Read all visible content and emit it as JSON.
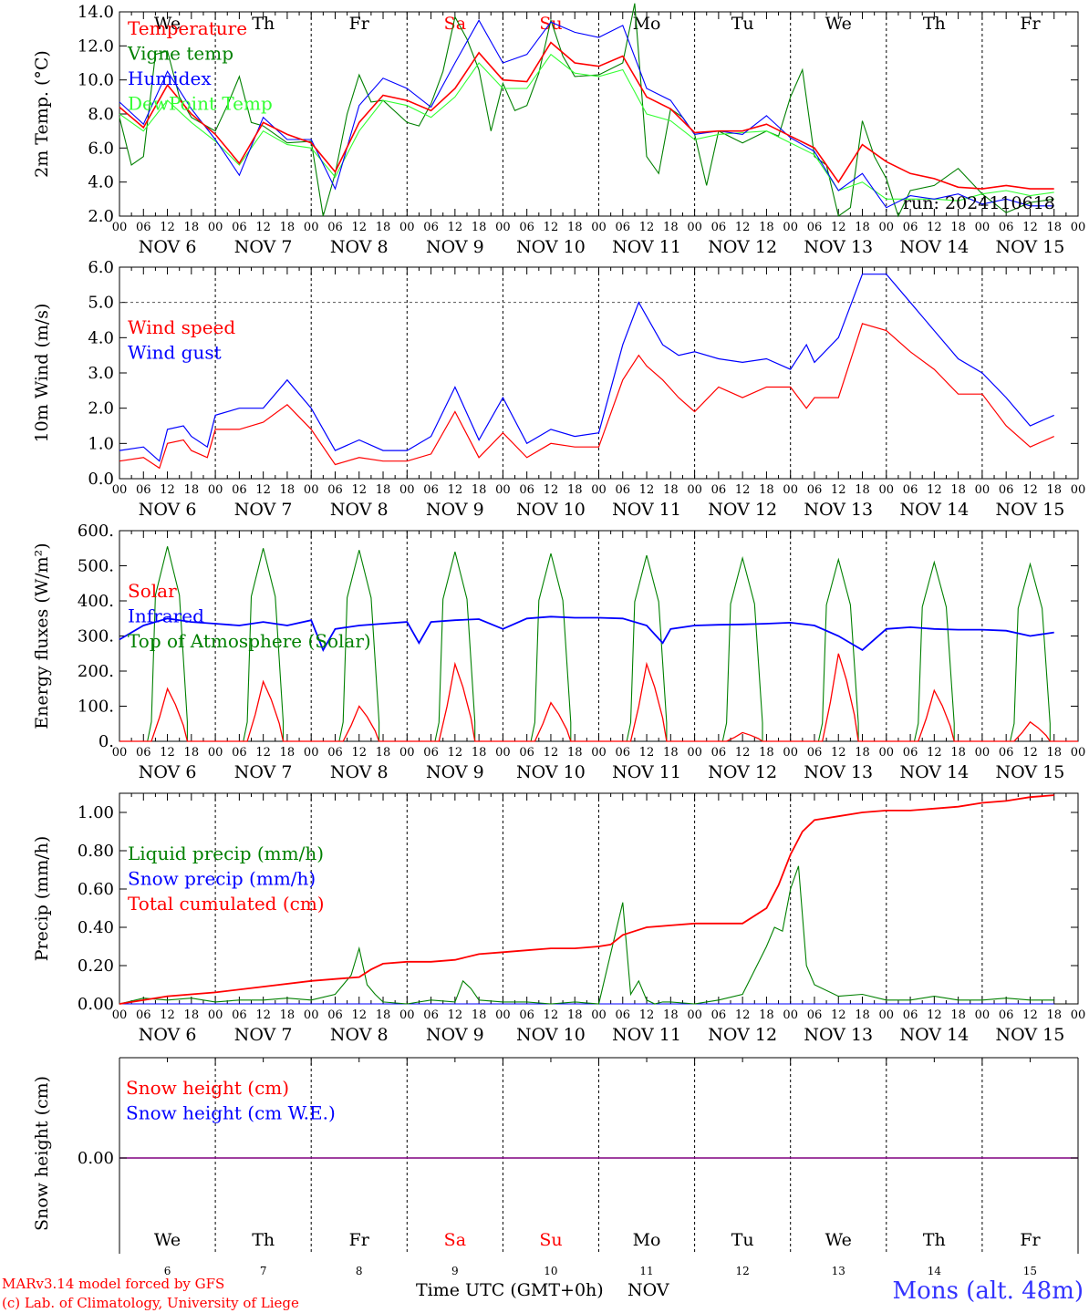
{
  "days": [
    "6",
    "7",
    "8",
    "9",
    "10",
    "11",
    "12",
    "13",
    "14",
    "15"
  ],
  "weekdays": [
    "We",
    "Th",
    "Fr",
    "Sa",
    "Su",
    "Mo",
    "Tu",
    "We",
    "Th",
    "Fr"
  ],
  "weekend_flags": [
    false,
    false,
    false,
    true,
    true,
    false,
    false,
    false,
    false,
    false
  ],
  "month": "NOV",
  "hour_ticks": [
    "00",
    "06",
    "12",
    "18"
  ],
  "last_tick": "00",
  "colors": {
    "red": "#ff0000",
    "green": "#008000",
    "blue": "#0000ff",
    "lightgreen": "#33ff33",
    "purple": "#800080",
    "grid": "#000000"
  },
  "footer": {
    "model": "MARv3.14 model forced by GFS",
    "copyright": "(c) Lab. of Climatology, University of Liege",
    "time_label": "Time UTC (GMT+0h)",
    "month": "NOV",
    "location": "Mons (alt. 48m)"
  },
  "chart_data": [
    {
      "type": "line",
      "ylabel": "2m Temp. (°C)",
      "ylim": [
        2.0,
        14.0
      ],
      "yticks": [
        "2.0",
        "4.0",
        "6.0",
        "8.0",
        "10.0",
        "12.0",
        "14.0"
      ],
      "run_label": "run: 2024110618",
      "x_unit": "hours since Nov 6 00 UTC",
      "series": [
        {
          "name": "Temperature",
          "color": "red",
          "x": [
            0,
            6,
            12,
            18,
            24,
            30,
            36,
            42,
            48,
            54,
            60,
            66,
            72,
            78,
            84,
            90,
            96,
            102,
            108,
            114,
            120,
            126,
            132,
            138,
            144,
            150,
            156,
            162,
            168,
            174,
            180,
            186,
            192,
            198,
            204,
            210,
            216,
            222,
            228,
            234
          ],
          "y": [
            8.4,
            7.2,
            9.7,
            8.0,
            6.8,
            5.1,
            7.5,
            6.8,
            6.3,
            4.6,
            7.5,
            9.1,
            8.8,
            8.2,
            9.5,
            11.6,
            10.0,
            9.9,
            12.2,
            11.0,
            10.8,
            11.4,
            9.0,
            8.3,
            6.9,
            7.0,
            7.0,
            7.4,
            6.7,
            6.0,
            4.0,
            6.2,
            5.2,
            4.5,
            4.2,
            3.7,
            3.6,
            3.8,
            3.6,
            3.6
          ]
        },
        {
          "name": "Vigne temp",
          "color": "green",
          "x": [
            0,
            3,
            6,
            9,
            12,
            15,
            18,
            24,
            27,
            30,
            33,
            36,
            42,
            48,
            51,
            54,
            57,
            60,
            63,
            66,
            72,
            75,
            78,
            81,
            84,
            87,
            90,
            93,
            96,
            99,
            102,
            105,
            108,
            111,
            114,
            120,
            126,
            129,
            132,
            135,
            138,
            141,
            144,
            147,
            150,
            156,
            162,
            165,
            168,
            171,
            174,
            177,
            180,
            183,
            186,
            189,
            192,
            195,
            198,
            204,
            210,
            216,
            222,
            228,
            234
          ],
          "y": [
            7.8,
            5.0,
            5.5,
            11.5,
            11.7,
            9.0,
            7.8,
            7.0,
            8.5,
            10.2,
            7.5,
            7.3,
            6.3,
            6.4,
            2.0,
            4.5,
            8.0,
            10.3,
            8.7,
            8.8,
            7.5,
            7.3,
            8.6,
            10.5,
            13.7,
            12.4,
            10.6,
            7.0,
            9.8,
            8.2,
            8.5,
            10.4,
            13.5,
            11.4,
            10.2,
            10.3,
            11.0,
            14.5,
            5.5,
            4.5,
            8.3,
            7.8,
            6.8,
            3.8,
            7.0,
            6.3,
            7.0,
            6.7,
            9.0,
            10.6,
            5.5,
            5.0,
            2.0,
            2.5,
            7.6,
            5.5,
            4.2,
            2.0,
            3.5,
            3.8,
            4.8,
            3.3,
            2.2,
            2.8,
            3.0
          ]
        },
        {
          "name": "Humidex",
          "color": "blue",
          "x": [
            0,
            6,
            12,
            18,
            24,
            30,
            36,
            42,
            48,
            54,
            60,
            66,
            72,
            78,
            84,
            90,
            96,
            102,
            108,
            114,
            120,
            126,
            132,
            138,
            144,
            150,
            156,
            162,
            168,
            174,
            180,
            186,
            192,
            198,
            204,
            210,
            216,
            222,
            228,
            234
          ],
          "y": [
            8.7,
            7.4,
            10.5,
            8.3,
            6.5,
            4.4,
            7.8,
            6.5,
            6.5,
            3.6,
            8.5,
            10.1,
            9.5,
            8.4,
            11.0,
            13.5,
            11.0,
            11.5,
            13.4,
            12.8,
            12.5,
            13.2,
            9.5,
            8.8,
            6.8,
            7.0,
            6.8,
            7.9,
            6.6,
            5.8,
            3.5,
            4.5,
            2.5,
            3.2,
            3.0,
            3.3,
            2.7,
            3.0,
            2.6,
            2.6
          ]
        },
        {
          "name": "DewPoint Temp",
          "color": "lightgreen",
          "x": [
            0,
            6,
            12,
            18,
            24,
            30,
            36,
            42,
            48,
            54,
            60,
            66,
            72,
            78,
            84,
            90,
            96,
            102,
            108,
            114,
            120,
            126,
            132,
            138,
            144,
            150,
            156,
            162,
            168,
            174,
            180,
            186,
            192,
            198,
            204,
            210,
            216,
            222,
            228,
            234
          ],
          "y": [
            8.0,
            7.0,
            8.8,
            7.5,
            6.4,
            5.0,
            7.0,
            6.2,
            6.0,
            4.3,
            7.0,
            8.8,
            8.5,
            7.8,
            9.0,
            11.0,
            9.5,
            9.5,
            11.5,
            10.4,
            10.2,
            10.6,
            8.0,
            7.6,
            6.5,
            6.8,
            6.9,
            7.0,
            6.3,
            5.6,
            3.5,
            4.0,
            3.0,
            3.0,
            3.0,
            2.9,
            3.3,
            3.5,
            3.2,
            3.4
          ]
        }
      ]
    },
    {
      "type": "line",
      "ylabel": "10m Wind (m/s)",
      "ylim": [
        0.0,
        6.0
      ],
      "yticks": [
        "0.0",
        "1.0",
        "2.0",
        "3.0",
        "4.0",
        "5.0",
        "6.0"
      ],
      "ref_line": 5.0,
      "series": [
        {
          "name": "Wind speed",
          "color": "red",
          "x": [
            0,
            6,
            10,
            12,
            16,
            18,
            22,
            24,
            30,
            36,
            42,
            48,
            54,
            60,
            66,
            72,
            78,
            84,
            90,
            96,
            102,
            108,
            114,
            120,
            126,
            130,
            132,
            136,
            140,
            144,
            150,
            156,
            162,
            168,
            172,
            174,
            180,
            186,
            192,
            198,
            204,
            210,
            216,
            222,
            228,
            234
          ],
          "y": [
            0.5,
            0.6,
            0.3,
            1.0,
            1.1,
            0.8,
            0.6,
            1.4,
            1.4,
            1.6,
            2.1,
            1.4,
            0.4,
            0.6,
            0.5,
            0.5,
            0.7,
            1.9,
            0.6,
            1.3,
            0.6,
            1.0,
            0.9,
            0.9,
            2.8,
            3.5,
            3.2,
            2.8,
            2.3,
            1.9,
            2.6,
            2.3,
            2.6,
            2.6,
            2.0,
            2.3,
            2.3,
            4.4,
            4.2,
            3.6,
            3.1,
            2.4,
            2.4,
            1.5,
            0.9,
            1.2
          ]
        },
        {
          "name": "Wind gust",
          "color": "blue",
          "x": [
            0,
            6,
            10,
            12,
            16,
            18,
            22,
            24,
            30,
            36,
            42,
            48,
            54,
            60,
            66,
            72,
            78,
            84,
            90,
            96,
            102,
            108,
            114,
            120,
            126,
            130,
            132,
            136,
            140,
            144,
            150,
            156,
            162,
            168,
            172,
            174,
            180,
            186,
            192,
            198,
            204,
            210,
            216,
            222,
            228,
            234
          ],
          "y": [
            0.8,
            0.9,
            0.5,
            1.4,
            1.5,
            1.2,
            0.9,
            1.8,
            2.0,
            2.0,
            2.8,
            2.0,
            0.8,
            1.1,
            0.8,
            0.8,
            1.2,
            2.6,
            1.1,
            2.3,
            1.0,
            1.4,
            1.2,
            1.3,
            3.8,
            5.0,
            4.6,
            3.8,
            3.5,
            3.6,
            3.4,
            3.3,
            3.4,
            3.1,
            3.8,
            3.3,
            4.0,
            5.8,
            5.8,
            5.0,
            4.2,
            3.4,
            3.0,
            2.3,
            1.5,
            1.8
          ]
        }
      ]
    },
    {
      "type": "line",
      "ylabel": "Energy fluxes (W/m²)",
      "ylim": [
        0,
        600
      ],
      "yticks": [
        "0.",
        "100.",
        "200.",
        "300.",
        "400.",
        "500.",
        "600."
      ],
      "series": [
        {
          "name": "Solar",
          "color": "red",
          "peaks": [
            150,
            170,
            100,
            220,
            110,
            220,
            25,
            250,
            145,
            55
          ]
        },
        {
          "name": "Infrared",
          "color": "blue",
          "x": [
            0,
            6,
            12,
            18,
            24,
            30,
            36,
            42,
            48,
            51,
            54,
            60,
            66,
            72,
            75,
            78,
            84,
            90,
            96,
            102,
            108,
            114,
            120,
            126,
            132,
            136,
            138,
            144,
            150,
            156,
            162,
            168,
            174,
            180,
            186,
            192,
            198,
            204,
            210,
            216,
            222,
            228,
            234
          ],
          "y": [
            290,
            330,
            350,
            340,
            335,
            330,
            340,
            330,
            345,
            260,
            320,
            330,
            335,
            340,
            280,
            340,
            345,
            348,
            320,
            350,
            355,
            352,
            352,
            350,
            330,
            280,
            320,
            330,
            332,
            333,
            335,
            338,
            330,
            300,
            260,
            320,
            325,
            320,
            318,
            318,
            315,
            300,
            310
          ]
        },
        {
          "name": "Top of Atmosphere (Solar)",
          "color": "green",
          "peaks": [
            555,
            550,
            545,
            540,
            535,
            530,
            522,
            518,
            510,
            505
          ]
        }
      ]
    },
    {
      "type": "line",
      "ylabel": "Precip (mm/h)",
      "ylim": [
        0.0,
        1.1
      ],
      "yticks": [
        "0.00",
        "0.20",
        "0.40",
        "0.60",
        "0.80",
        "1.00"
      ],
      "series": [
        {
          "name": "Liquid precip (mm/h)",
          "color": "green",
          "x": [
            0,
            6,
            12,
            18,
            24,
            30,
            36,
            42,
            48,
            54,
            58,
            60,
            62,
            64,
            66,
            72,
            78,
            84,
            86,
            88,
            90,
            96,
            102,
            108,
            114,
            120,
            126,
            128,
            130,
            132,
            134,
            136,
            138,
            144,
            150,
            156,
            162,
            164,
            166,
            168,
            170,
            172,
            174,
            180,
            186,
            192,
            198,
            204,
            210,
            216,
            222,
            228,
            234
          ],
          "y": [
            0.0,
            0.03,
            0.02,
            0.03,
            0.01,
            0.02,
            0.02,
            0.03,
            0.02,
            0.05,
            0.15,
            0.29,
            0.1,
            0.05,
            0.01,
            0.0,
            0.02,
            0.01,
            0.12,
            0.08,
            0.02,
            0.01,
            0.01,
            0.0,
            0.01,
            0.0,
            0.53,
            0.05,
            0.12,
            0.02,
            0.0,
            0.01,
            0.01,
            0.0,
            0.02,
            0.05,
            0.3,
            0.4,
            0.38,
            0.6,
            0.72,
            0.2,
            0.1,
            0.04,
            0.05,
            0.02,
            0.02,
            0.04,
            0.02,
            0.02,
            0.03,
            0.02,
            0.02
          ]
        },
        {
          "name": "Snow precip (mm/h)",
          "color": "blue",
          "x": [
            0,
            234
          ],
          "y": [
            0.0,
            0.0
          ]
        },
        {
          "name": "Total cumulated (cm)",
          "color": "red",
          "x": [
            0,
            12,
            24,
            36,
            48,
            54,
            60,
            63,
            66,
            72,
            78,
            84,
            90,
            96,
            102,
            108,
            114,
            120,
            123,
            126,
            129,
            132,
            138,
            144,
            150,
            156,
            162,
            165,
            168,
            171,
            174,
            180,
            186,
            192,
            198,
            204,
            210,
            216,
            222,
            228,
            234
          ],
          "y": [
            0.0,
            0.04,
            0.06,
            0.09,
            0.12,
            0.13,
            0.14,
            0.18,
            0.21,
            0.22,
            0.22,
            0.23,
            0.26,
            0.27,
            0.28,
            0.29,
            0.29,
            0.3,
            0.31,
            0.36,
            0.38,
            0.4,
            0.41,
            0.42,
            0.42,
            0.42,
            0.5,
            0.62,
            0.78,
            0.9,
            0.96,
            0.98,
            1.0,
            1.01,
            1.01,
            1.02,
            1.03,
            1.05,
            1.06,
            1.08,
            1.09
          ]
        }
      ]
    },
    {
      "type": "line",
      "ylabel": "Snow height (cm)",
      "yticks": [
        "0.00"
      ],
      "series": [
        {
          "name": "Snow height (cm)",
          "color": "red",
          "x": [
            0,
            234
          ],
          "y": [
            0.0,
            0.0
          ]
        },
        {
          "name": "Snow height (cm W.E.)",
          "color": "blue",
          "x": [
            0,
            234
          ],
          "y": [
            0.0,
            0.0
          ]
        }
      ]
    }
  ]
}
